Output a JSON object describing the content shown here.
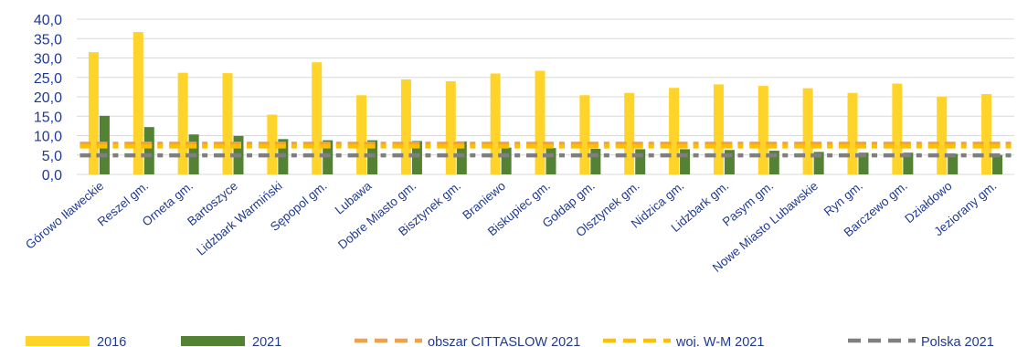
{
  "chart_data": {
    "type": "bar",
    "categories": [
      "Górowo Iławeckie",
      "Reszel gm.",
      "Orneta gm.",
      "Bartoszyce",
      "Lidzbark Warmiński",
      "Sępopol gm.",
      "Lubawa",
      "Dobre Miasto gm.",
      "Bisztynek gm.",
      "Braniewo",
      "Biskupiec gm.",
      "Gołdap gm.",
      "Olsztynek gm.",
      "Nidzica gm.",
      "Lidzbark gm.",
      "Pasym gm.",
      "Nowe Miasto Lubawskie",
      "Ryn gm.",
      "Barczewo gm.",
      "Działdowo",
      "Jeziorany gm."
    ],
    "series": [
      {
        "name": "2016",
        "kind": "bar",
        "color": "#FFD42A",
        "values": [
          31.5,
          36.7,
          26.2,
          26.1,
          15.4,
          28.9,
          20.4,
          24.5,
          24.0,
          26.0,
          26.7,
          20.4,
          21.0,
          22.3,
          23.2,
          22.8,
          22.2,
          21.0,
          23.4,
          20.0,
          20.7
        ]
      },
      {
        "name": "2021",
        "kind": "bar",
        "color": "#548235",
        "values": [
          15.1,
          12.2,
          10.3,
          9.9,
          9.1,
          8.8,
          8.8,
          8.6,
          8.5,
          6.9,
          6.8,
          6.6,
          6.5,
          6.5,
          6.3,
          6.1,
          5.8,
          5.6,
          5.6,
          5.3,
          5.0
        ]
      },
      {
        "name": "obszar CITTASLOW 2021",
        "kind": "dashed-line",
        "color": "#F4A046",
        "value": 7.9
      },
      {
        "name": "woj. W-M 2021",
        "kind": "dashed-line",
        "color": "#FFC000",
        "value": 7.2
      },
      {
        "name": "Polska 2021",
        "kind": "dashed-line",
        "color": "#7F7F7F",
        "value": 4.9
      }
    ],
    "y_ticks": [
      "0,0",
      "5,0",
      "10,0",
      "15,0",
      "20,0",
      "25,0",
      "30,0",
      "35,0",
      "40,0"
    ],
    "ylim": [
      0,
      40
    ],
    "grid": true,
    "legend_position": "bottom",
    "title": "",
    "xlabel": "",
    "ylabel": ""
  }
}
